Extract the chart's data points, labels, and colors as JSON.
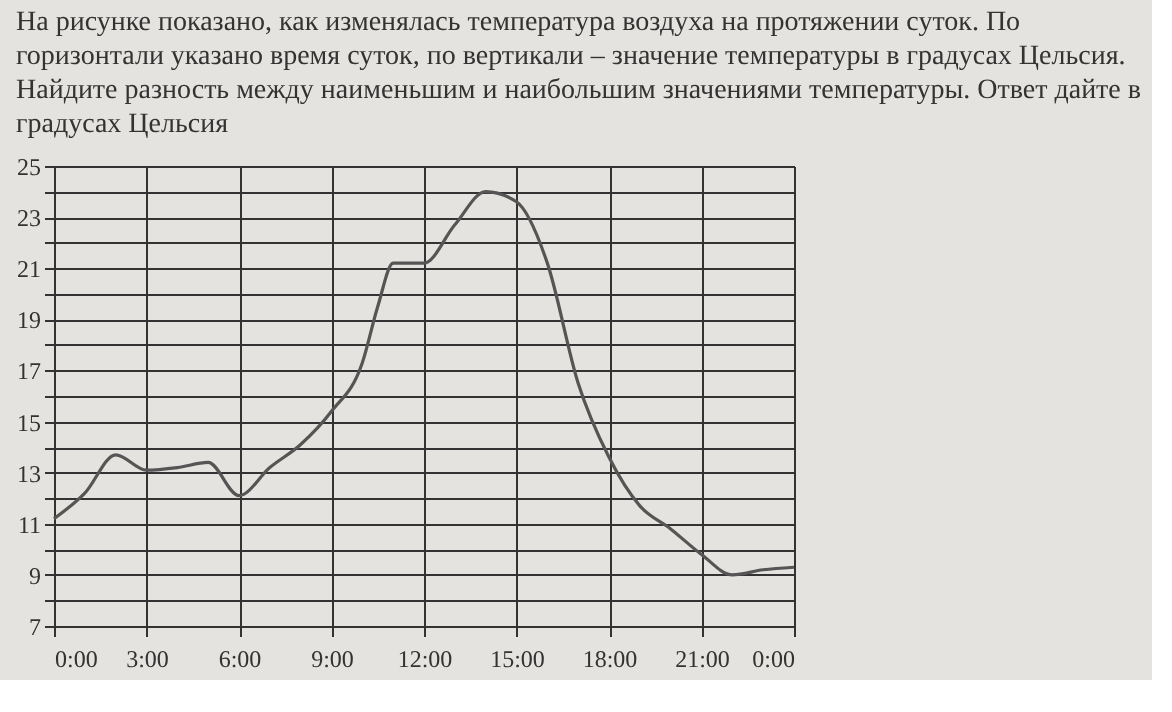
{
  "chart_data": {
    "type": "line",
    "title": "На рисунке показано, как изменялась температура воздуха на протяжении суток. По горизонтали указано время суток, по вертикали – значение температуры в градусах Цельсия. Найдите разность между наименьшим и наибольшим значениями температуры. Ответ дайте в градусах Цельсия",
    "x": [
      0,
      1,
      2,
      3,
      4,
      5,
      6,
      7,
      8,
      9,
      10,
      10.5,
      11,
      12,
      13,
      14,
      15,
      16,
      17,
      18,
      19,
      20,
      21,
      22,
      23,
      24
    ],
    "series": [
      {
        "color": "#555555",
        "values": [
          11.2,
          12.2,
          13.7,
          13.1,
          13.2,
          13.4,
          12.1,
          13.2,
          14.1,
          15.4,
          17.3,
          19.5,
          21.2,
          21.2,
          22.7,
          24,
          23.6,
          21.2,
          16.5,
          13.6,
          11.7,
          10.8,
          9.8,
          9,
          9.2,
          9.3
        ]
      }
    ],
    "xlim": [
      0,
      24
    ],
    "ylim": [
      7,
      25
    ],
    "xticks": [
      {
        "value": 0,
        "label": "0:00"
      },
      {
        "value": 3,
        "label": "3:00"
      },
      {
        "value": 6,
        "label": "6:00"
      },
      {
        "value": 9,
        "label": "9:00"
      },
      {
        "value": 12,
        "label": "12:00"
      },
      {
        "value": 15,
        "label": "15:00"
      },
      {
        "value": 18,
        "label": "18:00"
      },
      {
        "value": 21,
        "label": "21:00"
      },
      {
        "value": 24,
        "label": "0:00"
      }
    ],
    "yticks": [
      7,
      {
        "value": 8,
        "label": null
      },
      9,
      {
        "value": 10,
        "label": null
      },
      11,
      {
        "value": 12,
        "label": null
      },
      13,
      {
        "value": 14,
        "label": null
      },
      15,
      {
        "value": 16,
        "label": null
      },
      17,
      {
        "value": 18,
        "label": null
      },
      19,
      {
        "value": 20,
        "label": null
      },
      21,
      {
        "value": 22,
        "label": null
      },
      23,
      {
        "value": 24,
        "label": null
      },
      25
    ],
    "grid": true,
    "marker": "none",
    "line_style": "solid"
  }
}
